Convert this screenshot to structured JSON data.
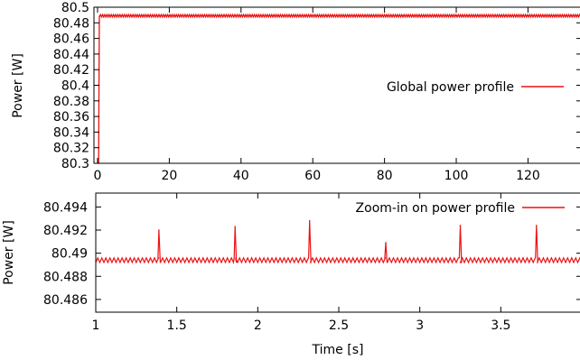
{
  "chart_data": [
    {
      "type": "line",
      "title": "",
      "xlabel": "",
      "ylabel": "Power [W]",
      "xlim": [
        -1,
        135
      ],
      "ylim": [
        80.3,
        80.5
      ],
      "xticks": [
        0,
        20,
        40,
        60,
        80,
        100,
        120
      ],
      "yticks": [
        "80.3",
        "80.32",
        "80.34",
        "80.36",
        "80.38",
        "80.4",
        "80.42",
        "80.44",
        "80.46",
        "80.48",
        "80.5"
      ],
      "grid": false,
      "legend": "right",
      "series": [
        {
          "name": "Global power profile",
          "color": "#ee1111",
          "x": [
            0,
            0.3,
            0.5,
            135
          ],
          "y": [
            80.3,
            80.3,
            80.489,
            80.489
          ]
        }
      ]
    },
    {
      "type": "line",
      "title": "",
      "xlabel": "Time [s]",
      "ylabel": "Power [W]",
      "xlim": [
        1,
        4
      ],
      "ylim": [
        80.4849,
        80.4952
      ],
      "xticks": [
        "1",
        "1.5",
        "2",
        "2.5",
        "3",
        "3.5",
        "4"
      ],
      "yticks": [
        "80.486",
        "80.488",
        "80.49",
        "80.492",
        "80.494"
      ],
      "grid": false,
      "legend": "top-right",
      "series": [
        {
          "name": "Zoom-in on power profile",
          "color": "#ee1111",
          "baseline_low": 80.4892,
          "baseline_high": 80.4896,
          "oscillation_period": 0.025,
          "spikes": [
            {
              "x": 1.39,
              "y": 80.492
            },
            {
              "x": 1.86,
              "y": 80.4923
            },
            {
              "x": 2.32,
              "y": 80.4928
            },
            {
              "x": 2.79,
              "y": 80.4909
            },
            {
              "x": 3.25,
              "y": 80.4924
            },
            {
              "x": 3.72,
              "y": 80.4924
            }
          ]
        }
      ]
    }
  ]
}
